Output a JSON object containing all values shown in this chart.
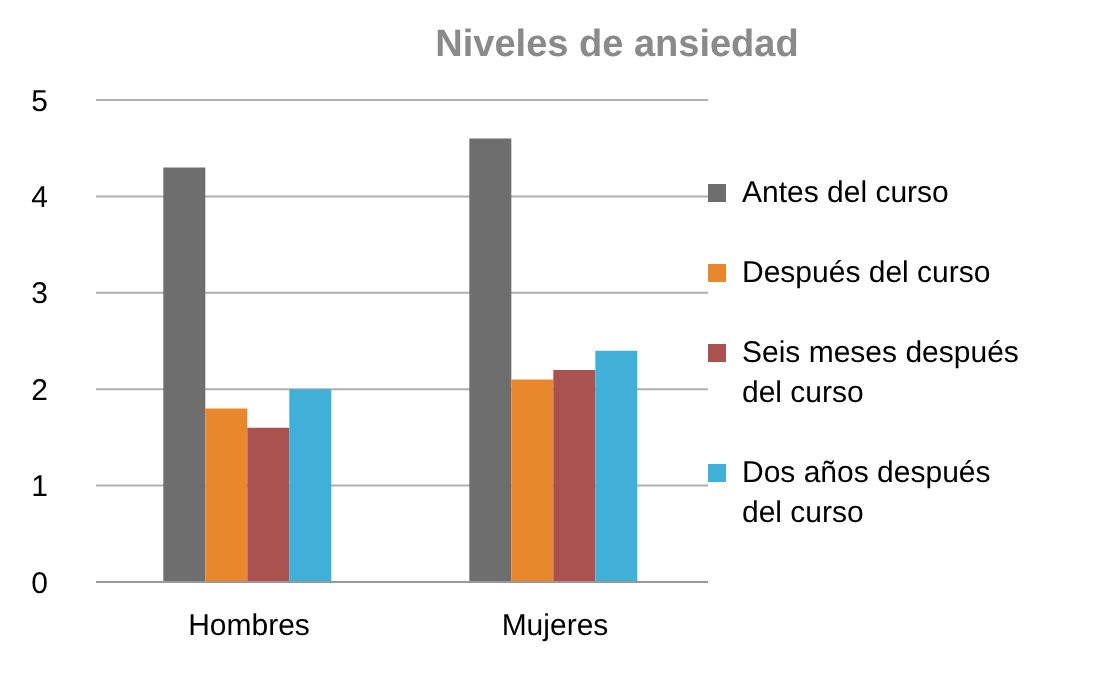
{
  "chart_data": {
    "type": "bar",
    "title": "Niveles de ansiedad",
    "categories": [
      "Hombres",
      "Mujeres"
    ],
    "series": [
      {
        "name": "Antes del curso",
        "color": "#6e6e6e",
        "values": [
          4.3,
          4.6
        ]
      },
      {
        "name": "Después del curso",
        "color": "#e8872c",
        "values": [
          1.8,
          2.1
        ]
      },
      {
        "name": "Seis meses después del curso",
        "color": "#a9524f",
        "values": [
          1.6,
          2.2
        ]
      },
      {
        "name": "Dos años después del curso",
        "color": "#40b0d9",
        "values": [
          2.0,
          2.4
        ]
      }
    ],
    "ylim": [
      0,
      5
    ],
    "yticks": [
      0,
      1,
      2,
      3,
      4,
      5
    ],
    "grid": "y",
    "legend": "right"
  }
}
